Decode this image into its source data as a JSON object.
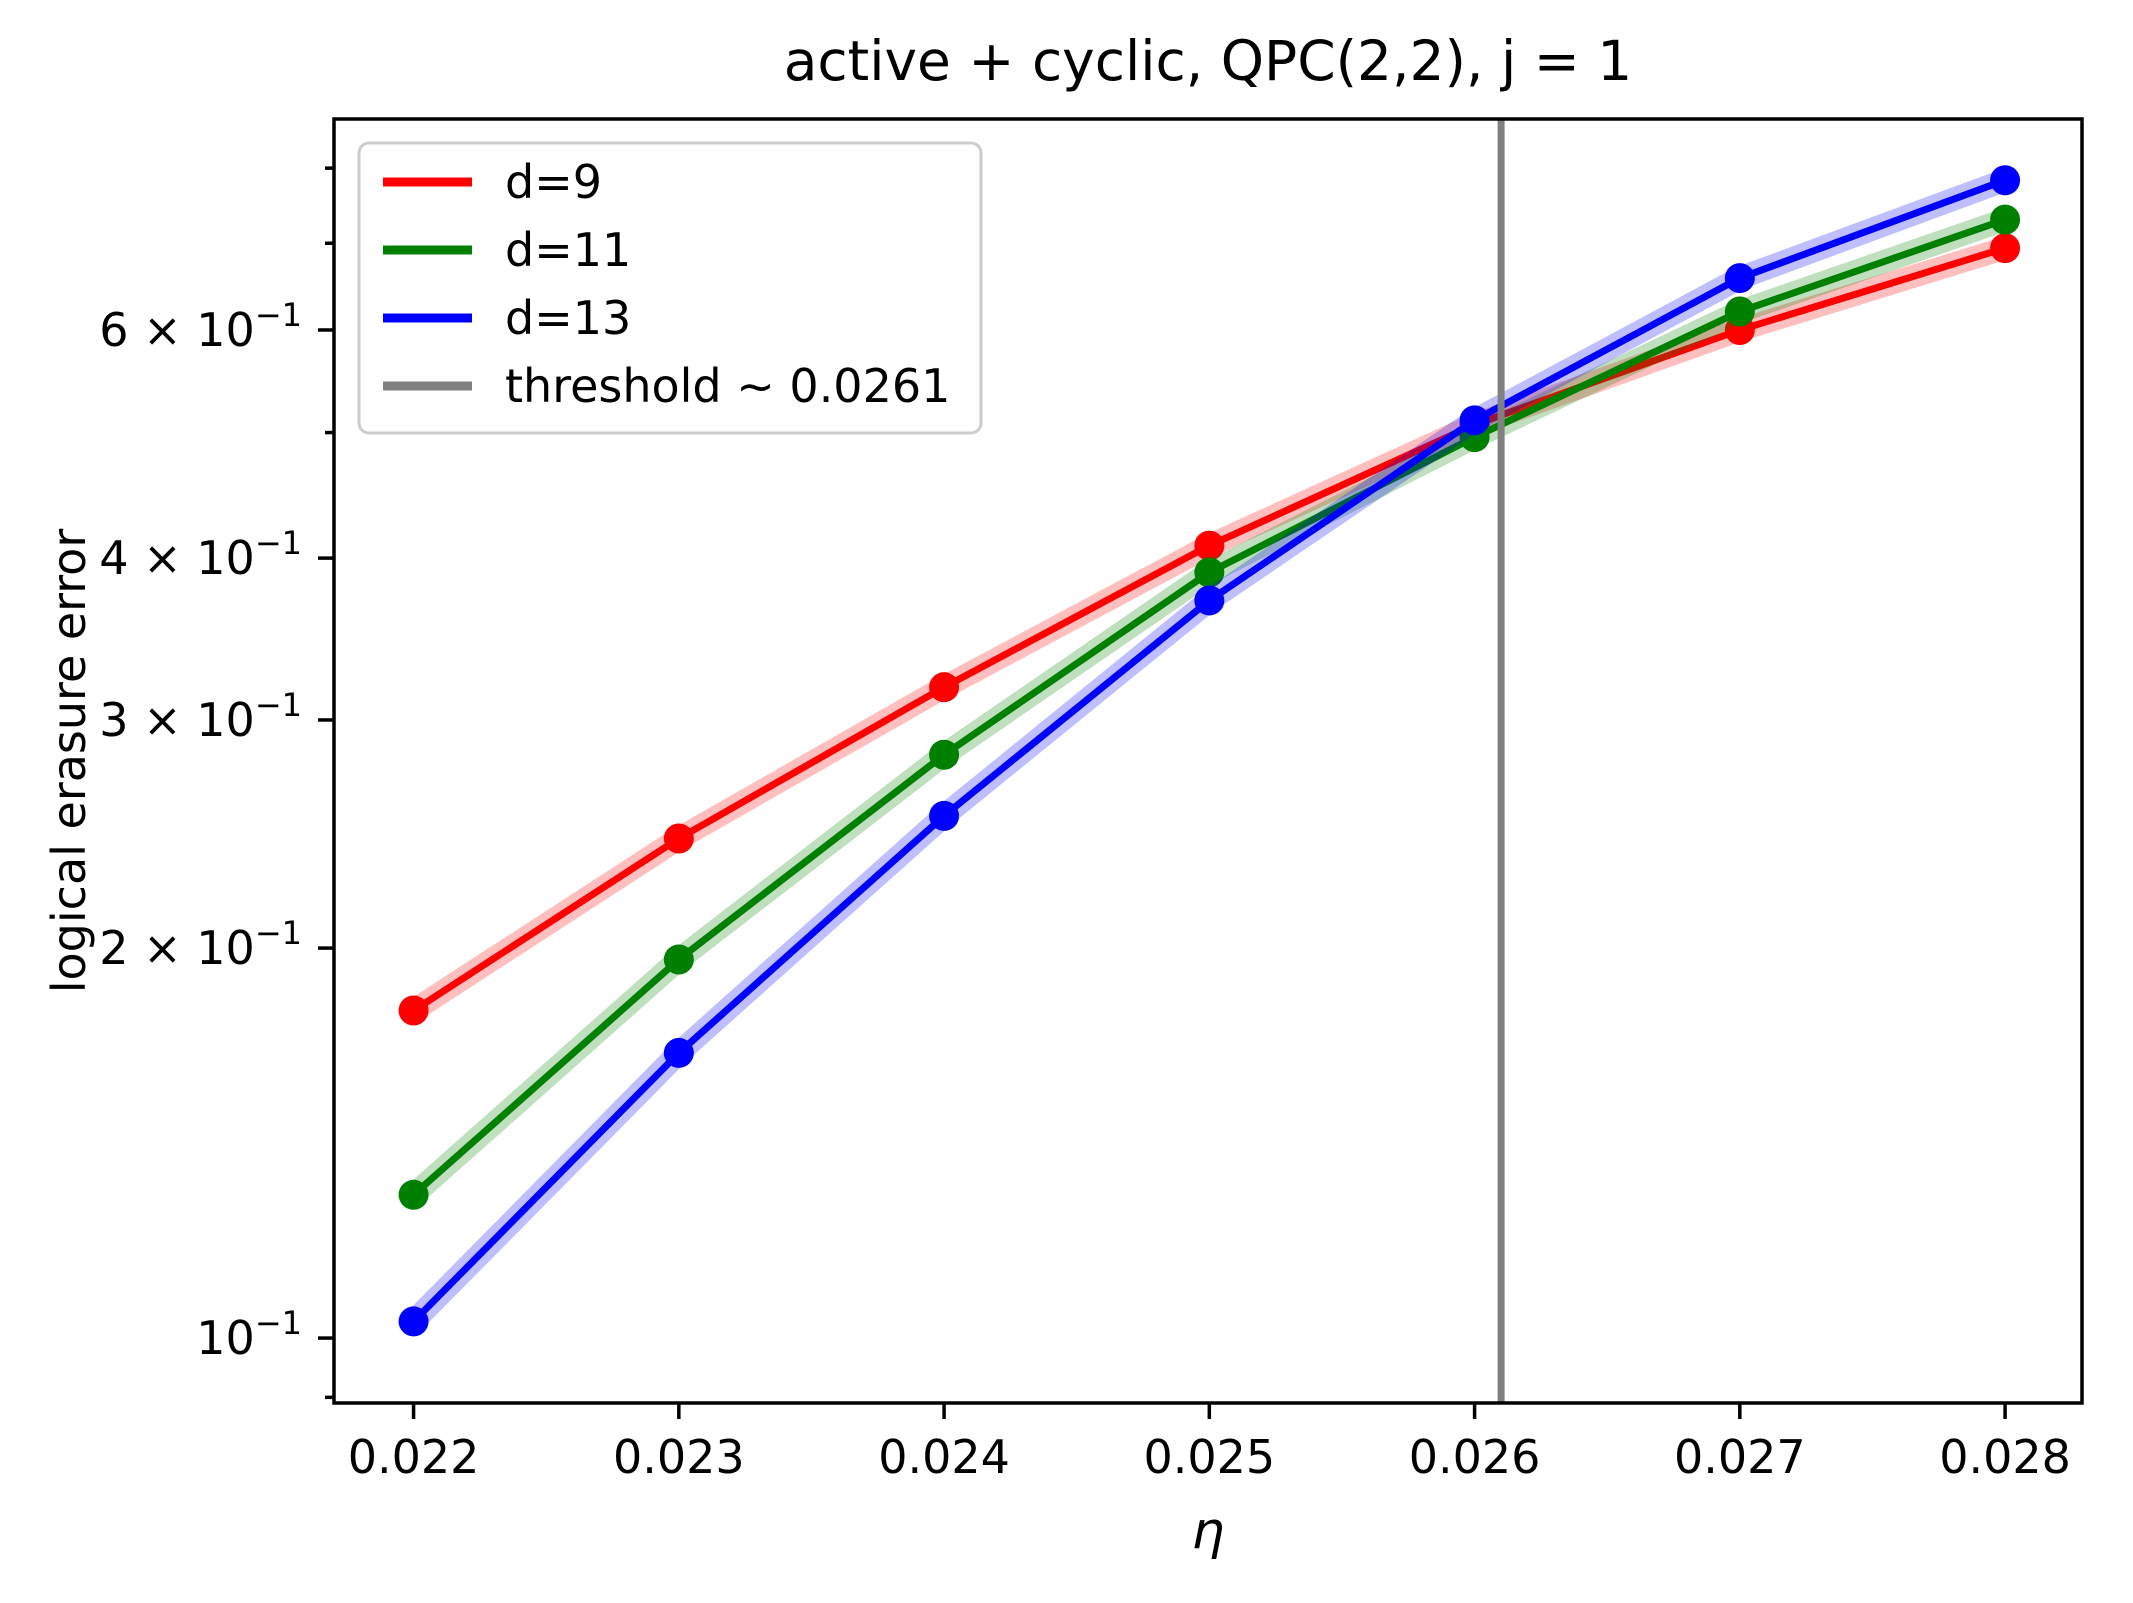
{
  "figure": {
    "title": "active + cyclic, QPC(2,2), j = 1",
    "background_color": "#ffffff",
    "spine_color": "#000000"
  },
  "chart_data": {
    "type": "line",
    "title": "active + cyclic, QPC(2,2), j = 1",
    "xlabel": "η",
    "ylabel": "logical erasure error",
    "xscale": "linear",
    "yscale": "log",
    "grid": false,
    "xlim": [
      0.0217,
      0.02829
    ],
    "ylim": [
      0.0891,
      0.873
    ],
    "x": [
      0.022,
      0.023,
      0.024,
      0.025,
      0.026,
      0.027,
      0.028
    ],
    "series": [
      {
        "name": "d=9",
        "color": "#ff0000",
        "values": [
          0.179,
          0.243,
          0.318,
          0.409,
          0.507,
          0.6,
          0.694
        ]
      },
      {
        "name": "d=11",
        "color": "#008000",
        "values": [
          0.129,
          0.196,
          0.282,
          0.39,
          0.496,
          0.62,
          0.73
        ]
      },
      {
        "name": "d=13",
        "color": "#0000ff",
        "values": [
          0.103,
          0.166,
          0.253,
          0.371,
          0.511,
          0.658,
          0.783
        ]
      }
    ],
    "threshold": {
      "label": "threshold ~ 0.0261",
      "value": 0.0261,
      "color": "#808080"
    },
    "x_ticks": [
      {
        "value": 0.022,
        "label": "0.022"
      },
      {
        "value": 0.023,
        "label": "0.023"
      },
      {
        "value": 0.024,
        "label": "0.024"
      },
      {
        "value": 0.025,
        "label": "0.025"
      },
      {
        "value": 0.026,
        "label": "0.026"
      },
      {
        "value": 0.027,
        "label": "0.027"
      },
      {
        "value": 0.028,
        "label": "0.028"
      }
    ],
    "y_ticks_major": [
      {
        "value": 0.6,
        "mantissa": "6 × 10",
        "exp": "−1"
      },
      {
        "value": 0.4,
        "mantissa": "4 × 10",
        "exp": "−1"
      },
      {
        "value": 0.3,
        "mantissa": "3 × 10",
        "exp": "−1"
      },
      {
        "value": 0.2,
        "mantissa": "2 × 10",
        "exp": "−1"
      },
      {
        "value": 0.1,
        "mantissa": "10",
        "exp": "−1"
      }
    ],
    "y_ticks_minor": [
      0.09,
      0.5,
      0.7,
      0.8
    ],
    "legend": {
      "position": "upper left",
      "entries": [
        {
          "label": "d=9",
          "color": "#ff0000"
        },
        {
          "label": "d=11",
          "color": "#008000"
        },
        {
          "label": "d=13",
          "color": "#0000ff"
        },
        {
          "label": "threshold ~ 0.0261",
          "color": "#808080"
        }
      ]
    }
  }
}
